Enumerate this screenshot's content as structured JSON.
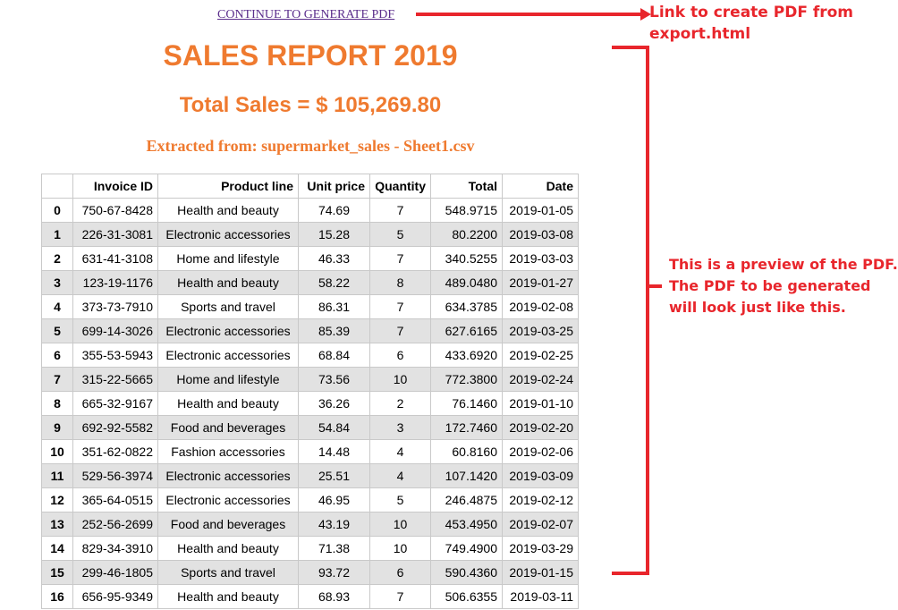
{
  "link": {
    "label": "CONTINUE TO GENERATE PDF"
  },
  "report": {
    "title": "SALES REPORT 2019",
    "total_sales": "Total Sales = $ 105,269.80",
    "source": "Extracted from: supermarket_sales - Sheet1.csv"
  },
  "table": {
    "columns": [
      "",
      "Invoice ID",
      "Product line",
      "Unit price",
      "Quantity",
      "Total",
      "Date"
    ],
    "rows": [
      [
        "0",
        "750-67-8428",
        "Health and beauty",
        "74.69",
        "7",
        "548.9715",
        "2019-01-05"
      ],
      [
        "1",
        "226-31-3081",
        "Electronic accessories",
        "15.28",
        "5",
        "80.2200",
        "2019-03-08"
      ],
      [
        "2",
        "631-41-3108",
        "Home and lifestyle",
        "46.33",
        "7",
        "340.5255",
        "2019-03-03"
      ],
      [
        "3",
        "123-19-1176",
        "Health and beauty",
        "58.22",
        "8",
        "489.0480",
        "2019-01-27"
      ],
      [
        "4",
        "373-73-7910",
        "Sports and travel",
        "86.31",
        "7",
        "634.3785",
        "2019-02-08"
      ],
      [
        "5",
        "699-14-3026",
        "Electronic accessories",
        "85.39",
        "7",
        "627.6165",
        "2019-03-25"
      ],
      [
        "6",
        "355-53-5943",
        "Electronic accessories",
        "68.84",
        "6",
        "433.6920",
        "2019-02-25"
      ],
      [
        "7",
        "315-22-5665",
        "Home and lifestyle",
        "73.56",
        "10",
        "772.3800",
        "2019-02-24"
      ],
      [
        "8",
        "665-32-9167",
        "Health and beauty",
        "36.26",
        "2",
        "76.1460",
        "2019-01-10"
      ],
      [
        "9",
        "692-92-5582",
        "Food and beverages",
        "54.84",
        "3",
        "172.7460",
        "2019-02-20"
      ],
      [
        "10",
        "351-62-0822",
        "Fashion accessories",
        "14.48",
        "4",
        "60.8160",
        "2019-02-06"
      ],
      [
        "11",
        "529-56-3974",
        "Electronic accessories",
        "25.51",
        "4",
        "107.1420",
        "2019-03-09"
      ],
      [
        "12",
        "365-64-0515",
        "Electronic accessories",
        "46.95",
        "5",
        "246.4875",
        "2019-02-12"
      ],
      [
        "13",
        "252-56-2699",
        "Food and beverages",
        "43.19",
        "10",
        "453.4950",
        "2019-02-07"
      ],
      [
        "14",
        "829-34-3910",
        "Health and beauty",
        "71.38",
        "10",
        "749.4900",
        "2019-03-29"
      ],
      [
        "15",
        "299-46-1805",
        "Sports and travel",
        "93.72",
        "6",
        "590.4360",
        "2019-01-15"
      ],
      [
        "16",
        "656-95-9349",
        "Health and beauty",
        "68.93",
        "7",
        "506.6355",
        "2019-03-11"
      ]
    ]
  },
  "annotations": {
    "link_note": [
      "Link to create PDF from",
      "export.html"
    ],
    "preview_note": [
      "This is a preview of the PDF.",
      "The PDF to be generated",
      "will look just like this."
    ],
    "color": "#e8262c"
  }
}
